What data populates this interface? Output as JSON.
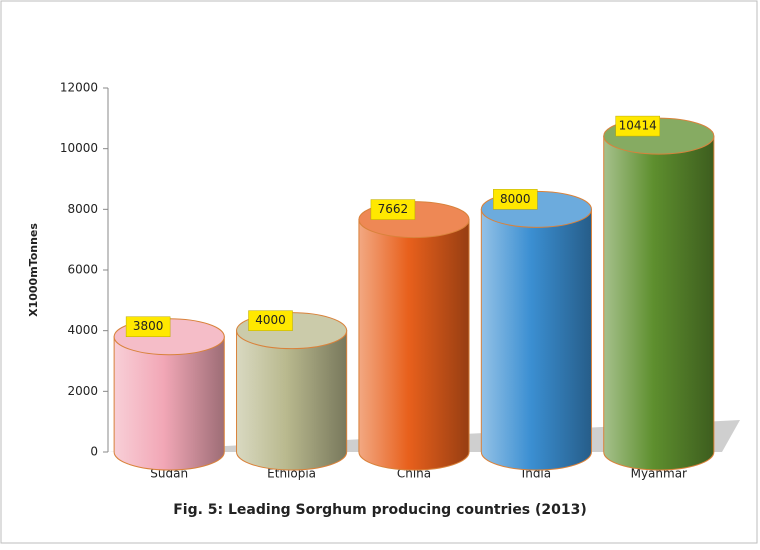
{
  "chart_data": {
    "type": "bar",
    "title": "Fig. 5: Leading Sorghum producing countries (2013)",
    "y_label": "X1000mTonnes",
    "categories": [
      "Sudan",
      "Ethiopia",
      "China",
      "India",
      "Myanmar"
    ],
    "values": [
      3800,
      4000,
      7662,
      8000,
      10414
    ],
    "colors": [
      "#f2a7b6",
      "#b9b98e",
      "#e8601c",
      "#3b8fd2",
      "#5e8f2e"
    ],
    "ylim": [
      0,
      12000
    ],
    "yticks": [
      0,
      2000,
      4000,
      6000,
      8000,
      10000,
      12000
    ],
    "grid": false
  }
}
